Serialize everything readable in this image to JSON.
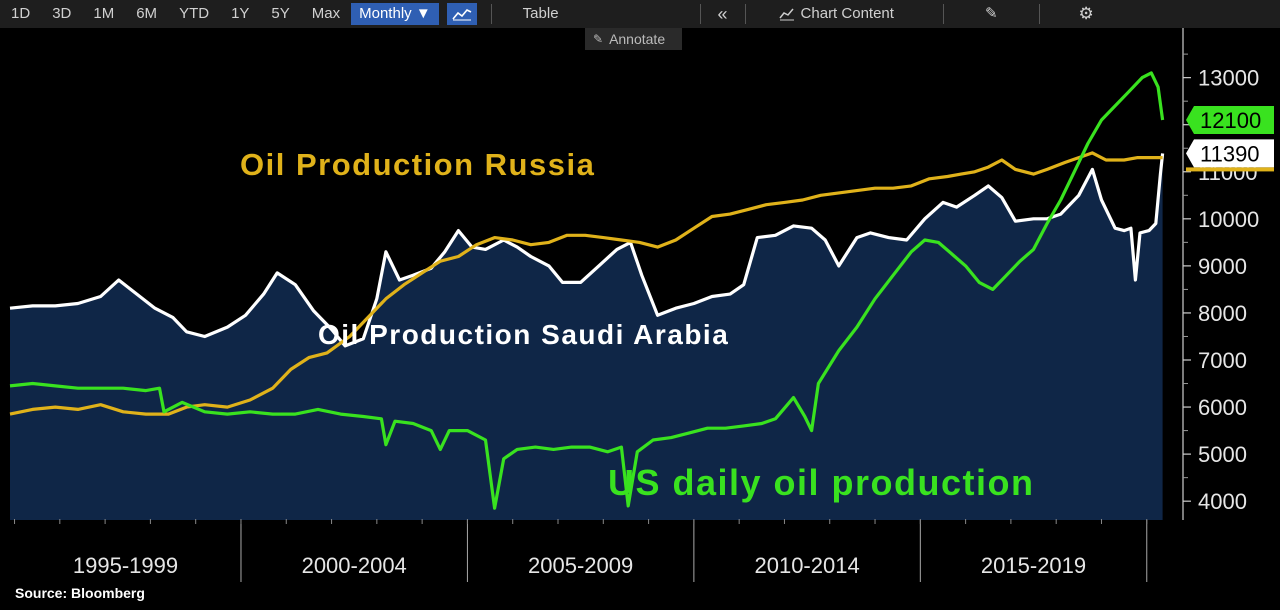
{
  "toolbar": {
    "ranges": [
      "1D",
      "3D",
      "1M",
      "6M",
      "YTD",
      "1Y",
      "5Y",
      "Max"
    ],
    "frequency": "Monthly ▼",
    "table_label": "Table",
    "chart_content_label": "Chart Content",
    "collapse_glyph": "«",
    "settings_glyph": "⚙",
    "edit_glyph": "✎",
    "chart_type_icon": "line-chart-icon",
    "annotate_label": "Annotate"
  },
  "source": "Source: Bloomberg",
  "colors": {
    "background": "#000000",
    "area_fill": "#0f2647",
    "saudi": "#ffffff",
    "russia": "#e0b21a",
    "us": "#39e21f",
    "toolbar_accent": "#2f5fb3"
  },
  "chart_data": {
    "type": "line",
    "title": "",
    "xlabel": "",
    "ylabel": "",
    "x_range": [
      "1995-01",
      "2019-12"
    ],
    "ylim": [
      3600,
      13800
    ],
    "y_ticks": [
      "4000",
      "5000",
      "6000",
      "7000",
      "8000",
      "9000",
      "10000",
      "11000",
      "12000",
      "13000"
    ],
    "period_labels": [
      "1995-1999",
      "2000-2004",
      "2005-2009",
      "2010-2014",
      "2015-2019"
    ],
    "grid": false,
    "annotations": [
      {
        "series": "russia",
        "text": "Oil Production Russia"
      },
      {
        "series": "saudi",
        "text": "Oil Production Saudi Arabia"
      },
      {
        "series": "us",
        "text": "US daily oil production"
      }
    ],
    "last_value_labels": [
      {
        "series": "us",
        "text": "12100"
      },
      {
        "series": "saudi",
        "text": "11390"
      }
    ],
    "series": [
      {
        "key": "saudi",
        "area": true,
        "points": [
          [
            1995.0,
            8100
          ],
          [
            1995.5,
            8150
          ],
          [
            1996.0,
            8150
          ],
          [
            1996.5,
            8200
          ],
          [
            1997.0,
            8350
          ],
          [
            1997.4,
            8700
          ],
          [
            1997.8,
            8400
          ],
          [
            1998.2,
            8100
          ],
          [
            1998.6,
            7900
          ],
          [
            1998.9,
            7600
          ],
          [
            1999.3,
            7500
          ],
          [
            1999.8,
            7700
          ],
          [
            2000.2,
            7950
          ],
          [
            2000.6,
            8400
          ],
          [
            2000.9,
            8850
          ],
          [
            2001.3,
            8600
          ],
          [
            2001.7,
            8050
          ],
          [
            2002.1,
            7650
          ],
          [
            2002.4,
            7300
          ],
          [
            2002.8,
            7450
          ],
          [
            2003.1,
            8300
          ],
          [
            2003.3,
            9300
          ],
          [
            2003.6,
            8700
          ],
          [
            2003.9,
            8800
          ],
          [
            2004.3,
            8950
          ],
          [
            2004.6,
            9300
          ],
          [
            2004.9,
            9750
          ],
          [
            2005.2,
            9400
          ],
          [
            2005.5,
            9350
          ],
          [
            2005.9,
            9550
          ],
          [
            2006.2,
            9400
          ],
          [
            2006.5,
            9200
          ],
          [
            2006.9,
            9000
          ],
          [
            2007.2,
            8650
          ],
          [
            2007.6,
            8650
          ],
          [
            2008.0,
            9000
          ],
          [
            2008.4,
            9350
          ],
          [
            2008.7,
            9500
          ],
          [
            2008.95,
            8800
          ],
          [
            2009.3,
            7950
          ],
          [
            2009.7,
            8100
          ],
          [
            2010.1,
            8200
          ],
          [
            2010.5,
            8350
          ],
          [
            2010.9,
            8400
          ],
          [
            2011.2,
            8600
          ],
          [
            2011.5,
            9600
          ],
          [
            2011.9,
            9650
          ],
          [
            2012.3,
            9850
          ],
          [
            2012.7,
            9800
          ],
          [
            2013.0,
            9550
          ],
          [
            2013.3,
            9000
          ],
          [
            2013.7,
            9600
          ],
          [
            2014.0,
            9700
          ],
          [
            2014.4,
            9600
          ],
          [
            2014.8,
            9550
          ],
          [
            2015.2,
            10000
          ],
          [
            2015.6,
            10350
          ],
          [
            2015.9,
            10250
          ],
          [
            2016.3,
            10500
          ],
          [
            2016.6,
            10700
          ],
          [
            2016.9,
            10450
          ],
          [
            2017.2,
            9950
          ],
          [
            2017.6,
            10000
          ],
          [
            2017.9,
            10000
          ],
          [
            2018.2,
            10100
          ],
          [
            2018.6,
            10500
          ],
          [
            2018.9,
            11050
          ],
          [
            2019.1,
            10400
          ],
          [
            2019.4,
            9800
          ],
          [
            2019.6,
            9750
          ],
          [
            2019.75,
            9800
          ],
          [
            2019.85,
            8700
          ],
          [
            2019.95,
            9700
          ],
          [
            2020.15,
            9750
          ],
          [
            2020.3,
            9900
          ],
          [
            2020.4,
            10950
          ],
          [
            2020.45,
            11390
          ]
        ]
      },
      {
        "key": "russia",
        "area": false,
        "points": [
          [
            1995.0,
            5850
          ],
          [
            1995.5,
            5950
          ],
          [
            1996.0,
            6000
          ],
          [
            1996.5,
            5950
          ],
          [
            1997.0,
            6050
          ],
          [
            1997.5,
            5900
          ],
          [
            1998.0,
            5850
          ],
          [
            1998.5,
            5850
          ],
          [
            1998.9,
            6000
          ],
          [
            1999.3,
            6050
          ],
          [
            1999.8,
            6000
          ],
          [
            2000.3,
            6150
          ],
          [
            2000.8,
            6400
          ],
          [
            2001.2,
            6800
          ],
          [
            2001.6,
            7050
          ],
          [
            2002.0,
            7150
          ],
          [
            2002.5,
            7500
          ],
          [
            2002.9,
            7900
          ],
          [
            2003.3,
            8300
          ],
          [
            2003.7,
            8600
          ],
          [
            2004.1,
            8850
          ],
          [
            2004.5,
            9100
          ],
          [
            2004.9,
            9200
          ],
          [
            2005.3,
            9450
          ],
          [
            2005.7,
            9600
          ],
          [
            2006.1,
            9550
          ],
          [
            2006.5,
            9450
          ],
          [
            2006.9,
            9500
          ],
          [
            2007.3,
            9650
          ],
          [
            2007.7,
            9650
          ],
          [
            2008.1,
            9600
          ],
          [
            2008.5,
            9550
          ],
          [
            2008.9,
            9500
          ],
          [
            2009.3,
            9400
          ],
          [
            2009.7,
            9550
          ],
          [
            2010.1,
            9800
          ],
          [
            2010.5,
            10050
          ],
          [
            2010.9,
            10100
          ],
          [
            2011.3,
            10200
          ],
          [
            2011.7,
            10300
          ],
          [
            2012.1,
            10350
          ],
          [
            2012.5,
            10400
          ],
          [
            2012.9,
            10500
          ],
          [
            2013.3,
            10550
          ],
          [
            2013.7,
            10600
          ],
          [
            2014.1,
            10650
          ],
          [
            2014.5,
            10650
          ],
          [
            2014.9,
            10700
          ],
          [
            2015.3,
            10850
          ],
          [
            2015.7,
            10900
          ],
          [
            2016.0,
            10950
          ],
          [
            2016.3,
            11000
          ],
          [
            2016.6,
            11100
          ],
          [
            2016.9,
            11250
          ],
          [
            2017.2,
            11050
          ],
          [
            2017.6,
            10950
          ],
          [
            2017.9,
            11050
          ],
          [
            2018.3,
            11200
          ],
          [
            2018.6,
            11300
          ],
          [
            2018.9,
            11400
          ],
          [
            2019.2,
            11250
          ],
          [
            2019.6,
            11250
          ],
          [
            2019.9,
            11300
          ],
          [
            2020.2,
            11300
          ],
          [
            2020.45,
            11300
          ]
        ]
      },
      {
        "key": "us",
        "area": false,
        "points": [
          [
            1995.0,
            6450
          ],
          [
            1995.5,
            6500
          ],
          [
            1996.0,
            6450
          ],
          [
            1996.5,
            6400
          ],
          [
            1997.0,
            6400
          ],
          [
            1997.5,
            6400
          ],
          [
            1998.0,
            6350
          ],
          [
            1998.3,
            6400
          ],
          [
            1998.4,
            5900
          ],
          [
            1998.8,
            6100
          ],
          [
            1999.3,
            5900
          ],
          [
            1999.8,
            5850
          ],
          [
            2000.3,
            5900
          ],
          [
            2000.8,
            5850
          ],
          [
            2001.3,
            5850
          ],
          [
            2001.8,
            5950
          ],
          [
            2002.3,
            5850
          ],
          [
            2002.8,
            5800
          ],
          [
            2003.2,
            5750
          ],
          [
            2003.3,
            5200
          ],
          [
            2003.5,
            5700
          ],
          [
            2003.9,
            5650
          ],
          [
            2004.3,
            5500
          ],
          [
            2004.5,
            5100
          ],
          [
            2004.7,
            5500
          ],
          [
            2005.1,
            5500
          ],
          [
            2005.5,
            5300
          ],
          [
            2005.7,
            3850
          ],
          [
            2005.9,
            4900
          ],
          [
            2006.2,
            5100
          ],
          [
            2006.6,
            5150
          ],
          [
            2007.0,
            5100
          ],
          [
            2007.4,
            5150
          ],
          [
            2007.8,
            5150
          ],
          [
            2008.2,
            5050
          ],
          [
            2008.5,
            5150
          ],
          [
            2008.65,
            3900
          ],
          [
            2008.85,
            5050
          ],
          [
            2009.2,
            5300
          ],
          [
            2009.6,
            5350
          ],
          [
            2010.0,
            5450
          ],
          [
            2010.4,
            5550
          ],
          [
            2010.8,
            5550
          ],
          [
            2011.2,
            5600
          ],
          [
            2011.6,
            5650
          ],
          [
            2011.9,
            5750
          ],
          [
            2012.3,
            6200
          ],
          [
            2012.55,
            5800
          ],
          [
            2012.7,
            5500
          ],
          [
            2012.85,
            6500
          ],
          [
            2013.3,
            7200
          ],
          [
            2013.7,
            7700
          ],
          [
            2014.1,
            8300
          ],
          [
            2014.5,
            8800
          ],
          [
            2014.9,
            9300
          ],
          [
            2015.2,
            9550
          ],
          [
            2015.5,
            9500
          ],
          [
            2015.8,
            9250
          ],
          [
            2016.1,
            9000
          ],
          [
            2016.4,
            8650
          ],
          [
            2016.7,
            8500
          ],
          [
            2017.0,
            8800
          ],
          [
            2017.3,
            9100
          ],
          [
            2017.6,
            9350
          ],
          [
            2017.9,
            9900
          ],
          [
            2018.2,
            10400
          ],
          [
            2018.5,
            11000
          ],
          [
            2018.8,
            11600
          ],
          [
            2019.1,
            12100
          ],
          [
            2019.4,
            12400
          ],
          [
            2019.7,
            12700
          ],
          [
            2020.0,
            13000
          ],
          [
            2020.2,
            13100
          ],
          [
            2020.35,
            12800
          ],
          [
            2020.45,
            12100
          ]
        ]
      }
    ]
  }
}
